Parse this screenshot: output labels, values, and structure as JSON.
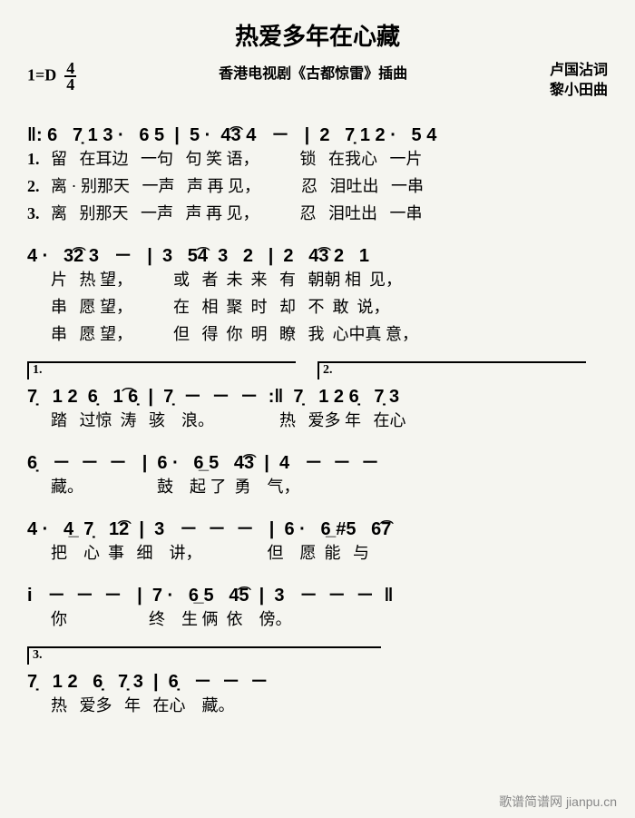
{
  "title": "热爱多年在心藏",
  "key_sig": "1=D",
  "time_sig": "4/4",
  "subtitle": "香港电视剧《古都惊雷》插曲",
  "lyricist": "卢国沾词",
  "composer": "黎小田曲",
  "watermark": "歌谱简谱网 jianpu.cn",
  "lines": [
    {
      "notes": "‖: 6   7̣ 1 3 ·   6 5  |  5 ·  4͡3 4   －   |  2   7̣ 1 2 ·   5 4",
      "lyrics": [
        {
          "n": "1.",
          "t": "留   在耳边   一句   句 笑 语，          锁   在我心   一片"
        },
        {
          "n": "2.",
          "t": "离 · 别那天   一声   声 再 见，          忍   泪吐出   一串"
        },
        {
          "n": "3.",
          "t": "离   别那天   一声   声 再 见，          忍   泪吐出   一串"
        }
      ]
    },
    {
      "notes": "4 ·   3͡2 3   －   |  3   5͡4  3   2   |  2   4͡3 2   1",
      "lyrics": [
        {
          "n": "",
          "t": "片   热 望，          或   者  未  来   有   朝朝 相  见，"
        },
        {
          "n": "",
          "t": "串   愿 望，          在   相  聚  时   却   不  敢  说，"
        },
        {
          "n": "",
          "t": "串   愿 望，          但   得  你  明   瞭   我  心中真 意，"
        }
      ]
    },
    {
      "volta": [
        {
          "n": "1.",
          "w": "48%"
        },
        {
          "n": "2.",
          "w": "48%"
        }
      ],
      "notes": "7̣   1 2  6̣   1͡ 6̣  |  7̣  －  －  －  :‖  7̣   1 2 6̣   7̣ 3",
      "lyrics": [
        {
          "n": "",
          "t": "踏   过惊  涛   骇    浪。                热   爱多 年   在心"
        }
      ]
    },
    {
      "notes": "6̣   －  －  －   |  6 ·   6̲ 5   4͡3  |  4   －  －  －",
      "lyrics": [
        {
          "n": "",
          "t": "藏。                  鼓    起 了  勇    气，"
        }
      ]
    },
    {
      "notes": "4 ·   4̲  7̣   1͡2  |  3   －  －  －   |  6 ·   6̲ #5   6͡7",
      "lyrics": [
        {
          "n": "",
          "t": "把    心  事   细    讲，                但    愿  能   与"
        }
      ]
    },
    {
      "notes": "i   －  －  －   |  7 ·   6̲ 5   4͡5  |  3   －  －  －  ‖",
      "lyrics": [
        {
          "n": "",
          "t": "你                    终    生 俩  依    傍。"
        }
      ]
    },
    {
      "volta": [
        {
          "n": "3.",
          "w": "60%"
        }
      ],
      "notes": "7̣   1 2   6̣   7̣ 3  |  6̣   －  －  －",
      "lyrics": [
        {
          "n": "",
          "t": "热   爱多   年   在心    藏。"
        }
      ]
    }
  ]
}
